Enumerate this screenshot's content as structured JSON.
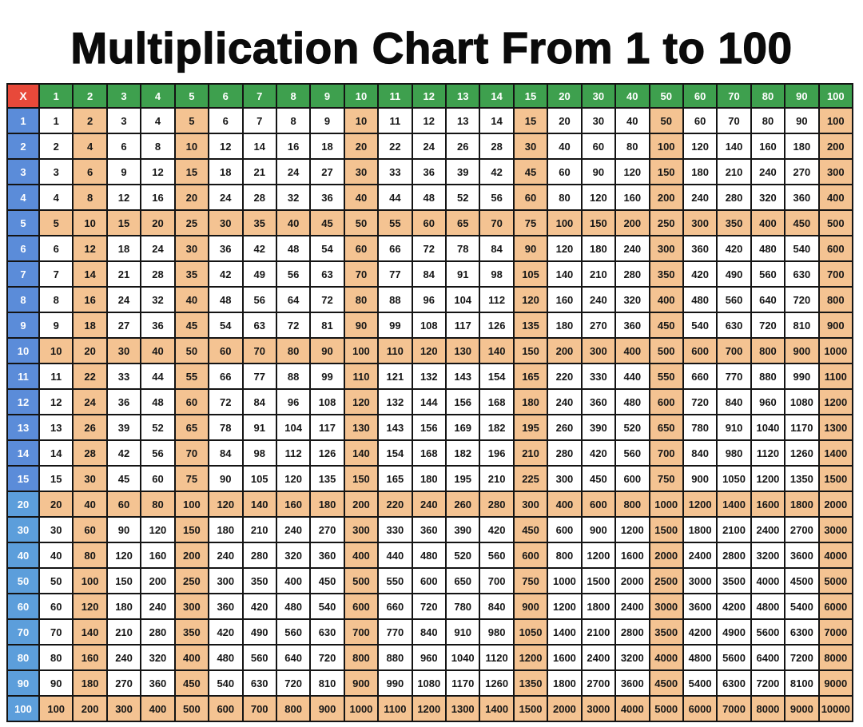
{
  "title": "Multiplication Chart From 1 to 100",
  "colors": {
    "corner_bg": "#E8493A",
    "col_header_bg": "#3EA04E",
    "row_header_bg": "#5B8CD9",
    "row_header_light_bg": "#5C9EDB",
    "highlight_bg": "#F4C392",
    "cell_bg": "#FFFFFF",
    "border": "#141414",
    "header_text": "#FFFFFF",
    "cell_text": "#161616"
  },
  "chart_data": {
    "type": "table",
    "title": "Multiplication Chart From 1 to 100",
    "corner_label": "X",
    "columns": [
      1,
      2,
      3,
      4,
      5,
      6,
      7,
      8,
      9,
      10,
      11,
      12,
      13,
      14,
      15,
      20,
      30,
      40,
      50,
      60,
      70,
      80,
      90,
      100
    ],
    "rows": [
      1,
      2,
      3,
      4,
      5,
      6,
      7,
      8,
      9,
      10,
      11,
      12,
      13,
      14,
      15,
      20,
      30,
      40,
      50,
      60,
      70,
      80,
      90,
      100
    ],
    "highlighted_columns": [
      2,
      5,
      10,
      15,
      50,
      100
    ],
    "highlighted_rows": [
      5,
      10,
      20,
      100
    ],
    "matrix": [
      [
        1,
        2,
        3,
        4,
        5,
        6,
        7,
        8,
        9,
        10,
        11,
        12,
        13,
        14,
        15,
        20,
        30,
        40,
        50,
        60,
        70,
        80,
        90,
        100
      ],
      [
        2,
        4,
        6,
        8,
        10,
        12,
        14,
        16,
        18,
        20,
        22,
        24,
        26,
        28,
        30,
        40,
        60,
        80,
        100,
        120,
        140,
        160,
        180,
        200
      ],
      [
        3,
        6,
        9,
        12,
        15,
        18,
        21,
        24,
        27,
        30,
        33,
        36,
        39,
        42,
        45,
        60,
        90,
        120,
        150,
        180,
        210,
        240,
        270,
        300
      ],
      [
        4,
        8,
        12,
        16,
        20,
        24,
        28,
        32,
        36,
        40,
        44,
        48,
        52,
        56,
        60,
        80,
        120,
        160,
        200,
        240,
        280,
        320,
        360,
        400
      ],
      [
        5,
        10,
        15,
        20,
        25,
        30,
        35,
        40,
        45,
        50,
        55,
        60,
        65,
        70,
        75,
        100,
        150,
        200,
        250,
        300,
        350,
        400,
        450,
        500
      ],
      [
        6,
        12,
        18,
        24,
        30,
        36,
        42,
        48,
        54,
        60,
        66,
        72,
        78,
        84,
        90,
        120,
        180,
        240,
        300,
        360,
        420,
        480,
        540,
        600
      ],
      [
        7,
        14,
        21,
        28,
        35,
        42,
        49,
        56,
        63,
        70,
        77,
        84,
        91,
        98,
        105,
        140,
        210,
        280,
        350,
        420,
        490,
        560,
        630,
        700
      ],
      [
        8,
        16,
        24,
        32,
        40,
        48,
        56,
        64,
        72,
        80,
        88,
        96,
        104,
        112,
        120,
        160,
        240,
        320,
        400,
        480,
        560,
        640,
        720,
        800
      ],
      [
        9,
        18,
        27,
        36,
        45,
        54,
        63,
        72,
        81,
        90,
        99,
        108,
        117,
        126,
        135,
        180,
        270,
        360,
        450,
        540,
        630,
        720,
        810,
        900
      ],
      [
        10,
        20,
        30,
        40,
        50,
        60,
        70,
        80,
        90,
        100,
        110,
        120,
        130,
        140,
        150,
        200,
        300,
        400,
        500,
        600,
        700,
        800,
        900,
        1000
      ],
      [
        11,
        22,
        33,
        44,
        55,
        66,
        77,
        88,
        99,
        110,
        121,
        132,
        143,
        154,
        165,
        220,
        330,
        440,
        550,
        660,
        770,
        880,
        990,
        1100
      ],
      [
        12,
        24,
        36,
        48,
        60,
        72,
        84,
        96,
        108,
        120,
        132,
        144,
        156,
        168,
        180,
        240,
        360,
        480,
        600,
        720,
        840,
        960,
        1080,
        1200
      ],
      [
        13,
        26,
        39,
        52,
        65,
        78,
        91,
        104,
        117,
        130,
        143,
        156,
        169,
        182,
        195,
        260,
        390,
        520,
        650,
        780,
        910,
        1040,
        1170,
        1300
      ],
      [
        14,
        28,
        42,
        56,
        70,
        84,
        98,
        112,
        126,
        140,
        154,
        168,
        182,
        196,
        210,
        280,
        420,
        560,
        700,
        840,
        980,
        1120,
        1260,
        1400
      ],
      [
        15,
        30,
        45,
        60,
        75,
        90,
        105,
        120,
        135,
        150,
        165,
        180,
        195,
        210,
        225,
        300,
        450,
        600,
        750,
        900,
        1050,
        1200,
        1350,
        1500
      ],
      [
        20,
        40,
        60,
        80,
        100,
        120,
        140,
        160,
        180,
        200,
        220,
        240,
        260,
        280,
        300,
        400,
        600,
        800,
        1000,
        1200,
        1400,
        1600,
        1800,
        2000
      ],
      [
        30,
        60,
        90,
        120,
        150,
        180,
        210,
        240,
        270,
        300,
        330,
        360,
        390,
        420,
        450,
        600,
        900,
        1200,
        1500,
        1800,
        2100,
        2400,
        2700,
        3000
      ],
      [
        40,
        80,
        120,
        160,
        200,
        240,
        280,
        320,
        360,
        400,
        440,
        480,
        520,
        560,
        600,
        800,
        1200,
        1600,
        2000,
        2400,
        2800,
        3200,
        3600,
        4000
      ],
      [
        50,
        100,
        150,
        200,
        250,
        300,
        350,
        400,
        450,
        500,
        550,
        600,
        650,
        700,
        750,
        1000,
        1500,
        2000,
        2500,
        3000,
        3500,
        4000,
        4500,
        5000
      ],
      [
        60,
        120,
        180,
        240,
        300,
        360,
        420,
        480,
        540,
        600,
        660,
        720,
        780,
        840,
        900,
        1200,
        1800,
        2400,
        3000,
        3600,
        4200,
        4800,
        5400,
        6000
      ],
      [
        70,
        140,
        210,
        280,
        350,
        420,
        490,
        560,
        630,
        700,
        770,
        840,
        910,
        980,
        1050,
        1400,
        2100,
        2800,
        3500,
        4200,
        4900,
        5600,
        6300,
        7000
      ],
      [
        80,
        160,
        240,
        320,
        400,
        480,
        560,
        640,
        720,
        800,
        880,
        960,
        1040,
        1120,
        1200,
        1600,
        2400,
        3200,
        4000,
        4800,
        5600,
        6400,
        7200,
        8000
      ],
      [
        90,
        180,
        270,
        360,
        450,
        540,
        630,
        720,
        810,
        900,
        990,
        1080,
        1170,
        1260,
        1350,
        1800,
        2700,
        3600,
        4500,
        5400,
        6300,
        7200,
        8100,
        9000
      ],
      [
        100,
        200,
        300,
        400,
        500,
        600,
        700,
        800,
        900,
        1000,
        1100,
        1200,
        1300,
        1400,
        1500,
        2000,
        3000,
        4000,
        5000,
        6000,
        7000,
        8000,
        9000,
        10000
      ]
    ]
  }
}
